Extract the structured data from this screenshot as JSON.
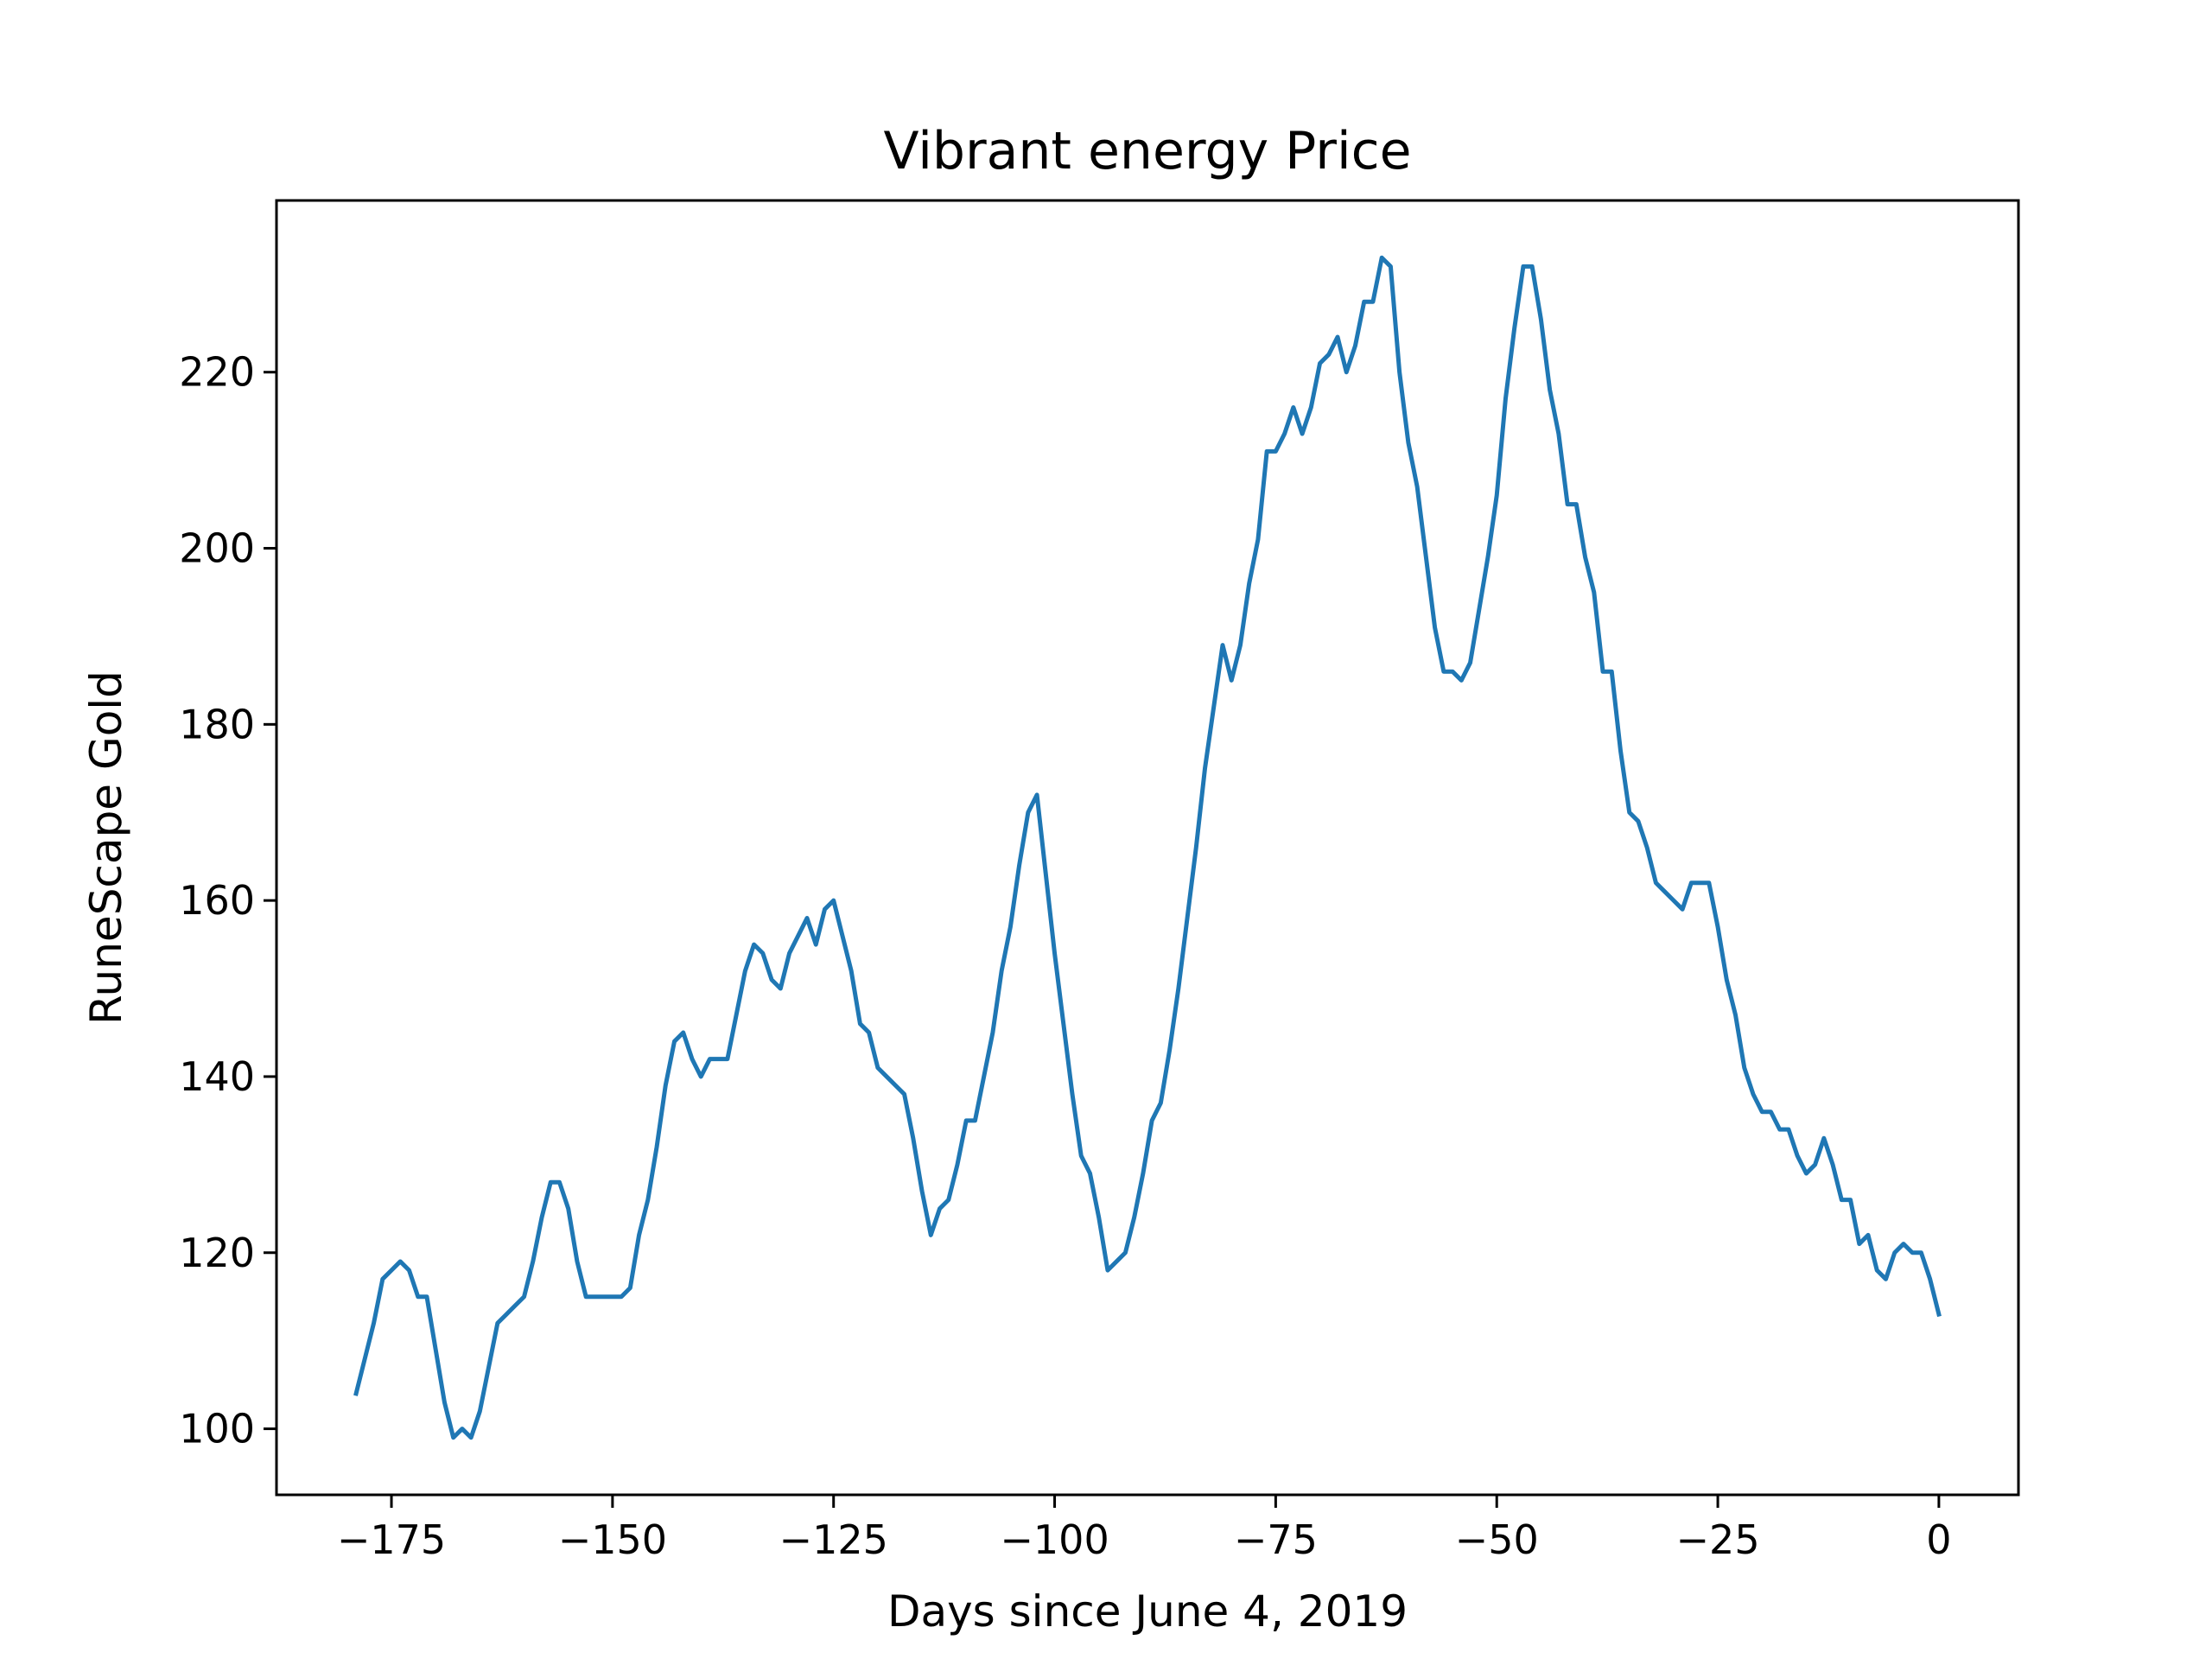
{
  "chart_data": {
    "type": "line",
    "title": "Vibrant energy Price",
    "xlabel": "Days since June 4, 2019",
    "ylabel": "RuneScape Gold",
    "xlim": [
      -188,
      9
    ],
    "ylim": [
      92.5,
      239.5
    ],
    "xticks": [
      -175,
      -150,
      -125,
      -100,
      -75,
      -50,
      -25,
      0
    ],
    "xtick_labels": [
      "−175",
      "−150",
      "−125",
      "−100",
      "−75",
      "−50",
      "−25",
      "0"
    ],
    "yticks": [
      100,
      120,
      140,
      160,
      180,
      200,
      220
    ],
    "ytick_labels": [
      "100",
      "120",
      "140",
      "160",
      "180",
      "200",
      "220"
    ],
    "grid": false,
    "series": [
      {
        "color": "#1f77b4",
        "points": [
          [
            -179,
            104
          ],
          [
            -178,
            108
          ],
          [
            -177,
            112
          ],
          [
            -176,
            117
          ],
          [
            -175,
            118
          ],
          [
            -174,
            119
          ],
          [
            -173,
            118
          ],
          [
            -172,
            115
          ],
          [
            -171,
            115
          ],
          [
            -170,
            109
          ],
          [
            -169,
            103
          ],
          [
            -168,
            99
          ],
          [
            -167,
            100
          ],
          [
            -166,
            99
          ],
          [
            -165,
            102
          ],
          [
            -164,
            107
          ],
          [
            -163,
            112
          ],
          [
            -162,
            113
          ],
          [
            -161,
            114
          ],
          [
            -160,
            115
          ],
          [
            -159,
            119
          ],
          [
            -158,
            124
          ],
          [
            -157,
            128
          ],
          [
            -156,
            128
          ],
          [
            -155,
            125
          ],
          [
            -154,
            119
          ],
          [
            -153,
            115
          ],
          [
            -152,
            115
          ],
          [
            -151,
            115
          ],
          [
            -150,
            115
          ],
          [
            -149,
            115
          ],
          [
            -148,
            116
          ],
          [
            -147,
            122
          ],
          [
            -146,
            126
          ],
          [
            -145,
            132
          ],
          [
            -144,
            139
          ],
          [
            -143,
            144
          ],
          [
            -142,
            145
          ],
          [
            -141,
            142
          ],
          [
            -140,
            140
          ],
          [
            -139,
            142
          ],
          [
            -138,
            142
          ],
          [
            -137,
            142
          ],
          [
            -136,
            147
          ],
          [
            -135,
            152
          ],
          [
            -134,
            155
          ],
          [
            -133,
            154
          ],
          [
            -132,
            151
          ],
          [
            -131,
            150
          ],
          [
            -130,
            154
          ],
          [
            -129,
            156
          ],
          [
            -128,
            158
          ],
          [
            -127,
            155
          ],
          [
            -126,
            159
          ],
          [
            -125,
            160
          ],
          [
            -124,
            156
          ],
          [
            -123,
            152
          ],
          [
            -122,
            146
          ],
          [
            -121,
            145
          ],
          [
            -120,
            141
          ],
          [
            -119,
            140
          ],
          [
            -118,
            139
          ],
          [
            -117,
            138
          ],
          [
            -116,
            133
          ],
          [
            -115,
            127
          ],
          [
            -114,
            122
          ],
          [
            -113,
            125
          ],
          [
            -112,
            126
          ],
          [
            -111,
            130
          ],
          [
            -110,
            135
          ],
          [
            -109,
            135
          ],
          [
            -108,
            140
          ],
          [
            -107,
            145
          ],
          [
            -106,
            152
          ],
          [
            -105,
            157
          ],
          [
            -104,
            164
          ],
          [
            -103,
            170
          ],
          [
            -102,
            172
          ],
          [
            -101,
            163
          ],
          [
            -100,
            154
          ],
          [
            -99,
            146
          ],
          [
            -98,
            138
          ],
          [
            -97,
            131
          ],
          [
            -96,
            129
          ],
          [
            -95,
            124
          ],
          [
            -94,
            118
          ],
          [
            -93,
            119
          ],
          [
            -92,
            120
          ],
          [
            -91,
            124
          ],
          [
            -90,
            129
          ],
          [
            -89,
            135
          ],
          [
            -88,
            137
          ],
          [
            -87,
            143
          ],
          [
            -86,
            150
          ],
          [
            -85,
            158
          ],
          [
            -84,
            166
          ],
          [
            -83,
            175
          ],
          [
            -82,
            182
          ],
          [
            -81,
            189
          ],
          [
            -80,
            185
          ],
          [
            -79,
            189
          ],
          [
            -78,
            196
          ],
          [
            -77,
            201
          ],
          [
            -76,
            211
          ],
          [
            -75,
            211
          ],
          [
            -74,
            213
          ],
          [
            -73,
            216
          ],
          [
            -72,
            213
          ],
          [
            -71,
            216
          ],
          [
            -70,
            221
          ],
          [
            -69,
            222
          ],
          [
            -68,
            224
          ],
          [
            -67,
            220
          ],
          [
            -66,
            223
          ],
          [
            -65,
            228
          ],
          [
            -64,
            228
          ],
          [
            -63,
            233
          ],
          [
            -62,
            232
          ],
          [
            -61,
            220
          ],
          [
            -60,
            212
          ],
          [
            -59,
            207
          ],
          [
            -58,
            199
          ],
          [
            -57,
            191
          ],
          [
            -56,
            186
          ],
          [
            -55,
            186
          ],
          [
            -54,
            185
          ],
          [
            -53,
            187
          ],
          [
            -52,
            193
          ],
          [
            -51,
            199
          ],
          [
            -50,
            206
          ],
          [
            -49,
            217
          ],
          [
            -48,
            225
          ],
          [
            -47,
            232
          ],
          [
            -46,
            232
          ],
          [
            -45,
            226
          ],
          [
            -44,
            218
          ],
          [
            -43,
            213
          ],
          [
            -42,
            205
          ],
          [
            -41,
            205
          ],
          [
            -40,
            199
          ],
          [
            -39,
            195
          ],
          [
            -38,
            186
          ],
          [
            -37,
            186
          ],
          [
            -36,
            177
          ],
          [
            -35,
            170
          ],
          [
            -34,
            169
          ],
          [
            -33,
            166
          ],
          [
            -32,
            162
          ],
          [
            -31,
            161
          ],
          [
            -30,
            160
          ],
          [
            -29,
            159
          ],
          [
            -28,
            162
          ],
          [
            -27,
            162
          ],
          [
            -26,
            162
          ],
          [
            -25,
            157
          ],
          [
            -24,
            151
          ],
          [
            -23,
            147
          ],
          [
            -22,
            141
          ],
          [
            -21,
            138
          ],
          [
            -20,
            136
          ],
          [
            -19,
            136
          ],
          [
            -18,
            134
          ],
          [
            -17,
            134
          ],
          [
            -16,
            131
          ],
          [
            -15,
            129
          ],
          [
            -14,
            130
          ],
          [
            -13,
            133
          ],
          [
            -12,
            130
          ],
          [
            -11,
            126
          ],
          [
            -10,
            126
          ],
          [
            -9,
            121
          ],
          [
            -8,
            122
          ],
          [
            -7,
            118
          ],
          [
            -6,
            117
          ],
          [
            -5,
            120
          ],
          [
            -4,
            121
          ],
          [
            -3,
            120
          ],
          [
            -2,
            120
          ],
          [
            -1,
            117
          ],
          [
            0,
            113
          ]
        ]
      }
    ]
  }
}
